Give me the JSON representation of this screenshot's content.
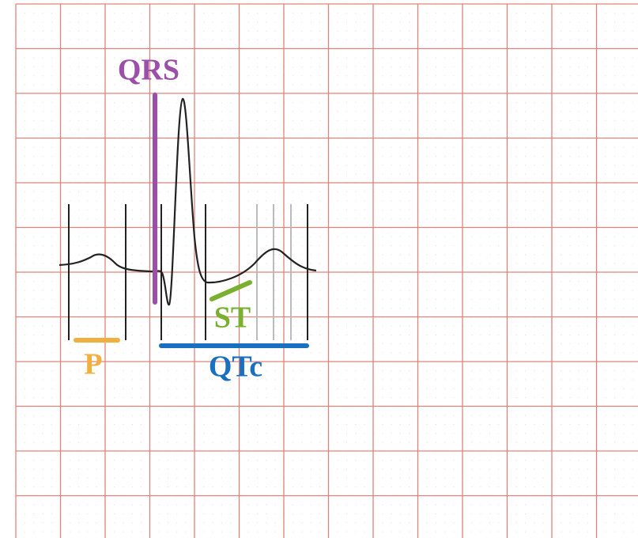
{
  "labels": {
    "qrs": "QRS",
    "p": "P",
    "st": "ST",
    "qtc": "QTc"
  }
}
